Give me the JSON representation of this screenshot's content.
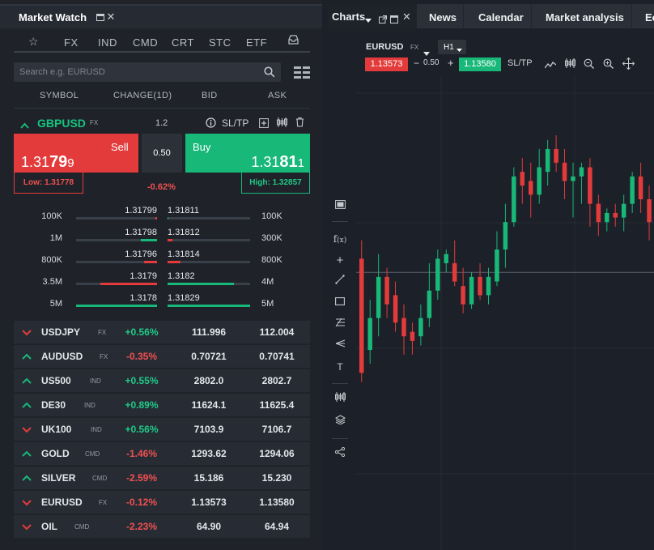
{
  "market_watch": {
    "title": "Market Watch",
    "tabs": [
      {
        "label": "FX"
      },
      {
        "label": "IND"
      },
      {
        "label": "CMD"
      },
      {
        "label": "CRT"
      },
      {
        "label": "STC"
      },
      {
        "label": "ETF"
      }
    ],
    "search_placeholder": "Search e.g. EURUSD",
    "columns": {
      "symbol": "SYMBOL",
      "change": "CHANGE(1D)",
      "bid": "BID",
      "ask": "ASK"
    },
    "selected": {
      "symbol": "GBPUSD",
      "class": "FX",
      "spread_header": "1.2",
      "sltp": "SL/TP",
      "sell_label": "Sell",
      "buy_label": "Buy",
      "sell_price_prefix": "1.31",
      "sell_price_big": "79",
      "sell_price_tail": "9",
      "buy_price_prefix": "1.31",
      "buy_price_big": "81",
      "buy_price_tail": "1",
      "spread": "0.50",
      "low": "Low: 1.31778",
      "high": "High: 1.32857",
      "change": "-0.62%"
    },
    "depth": [
      {
        "bid_vol": "100K",
        "bid": "1.31799",
        "ask": "1.31811",
        "ask_vol": "100K",
        "bid_fill": 0.02,
        "ask_fill": 0.01
      },
      {
        "bid_vol": "1M",
        "bid": "1.31798",
        "ask": "1.31812",
        "ask_vol": "300K",
        "bid_fill": 0.2,
        "ask_fill": 0.06
      },
      {
        "bid_vol": "800K",
        "bid": "1.31796",
        "ask": "1.31814",
        "ask_vol": "800K",
        "bid_fill": 0.16,
        "ask_fill": 0.16
      },
      {
        "bid_vol": "3.5M",
        "bid": "1.3179",
        "ask": "1.3182",
        "ask_vol": "4M",
        "bid_fill": 0.7,
        "ask_fill": 0.8
      },
      {
        "bid_vol": "5M",
        "bid": "1.3178",
        "ask": "1.31829",
        "ask_vol": "5M",
        "bid_fill": 1.0,
        "ask_fill": 1.0
      }
    ],
    "instruments": [
      {
        "dir": "down",
        "symbol": "USDJPY",
        "class": "FX",
        "change": "+0.56%",
        "bid": "111.996",
        "ask": "112.004"
      },
      {
        "dir": "up",
        "symbol": "AUDUSD",
        "class": "FX",
        "change": "-0.35%",
        "bid": "0.70721",
        "ask": "0.70741"
      },
      {
        "dir": "up",
        "symbol": "US500",
        "class": "IND",
        "change": "+0.55%",
        "bid": "2802.0",
        "ask": "2802.7"
      },
      {
        "dir": "up",
        "symbol": "DE30",
        "class": "IND",
        "change": "+0.89%",
        "bid": "11624.1",
        "ask": "11625.4"
      },
      {
        "dir": "down",
        "symbol": "UK100",
        "class": "IND",
        "change": "+0.56%",
        "bid": "7103.9",
        "ask": "7106.7"
      },
      {
        "dir": "up",
        "symbol": "GOLD",
        "class": "CMD",
        "change": "-1.46%",
        "bid": "1293.62",
        "ask": "1294.06"
      },
      {
        "dir": "up",
        "symbol": "SILVER",
        "class": "CMD",
        "change": "-2.59%",
        "bid": "15.186",
        "ask": "15.230"
      },
      {
        "dir": "down",
        "symbol": "EURUSD",
        "class": "FX",
        "change": "-0.12%",
        "bid": "1.13573",
        "ask": "1.13580"
      },
      {
        "dir": "down",
        "symbol": "OIL",
        "class": "CMD",
        "change": "-2.23%",
        "bid": "64.90",
        "ask": "64.94"
      }
    ]
  },
  "chart_panel": {
    "tabs": [
      {
        "label": "Charts"
      },
      {
        "label": "News"
      },
      {
        "label": "Calendar"
      },
      {
        "label": "Market analysis"
      },
      {
        "label": "Ec"
      }
    ],
    "symbol": "EURUSD",
    "class": "FX",
    "timeframe": "H1",
    "sell_price": "1.13573",
    "spread": "0.50",
    "buy_price": "1.13580",
    "sltp": "SL/TP"
  },
  "colors": {
    "up": "#18b879",
    "down": "#e33b3b",
    "bg": "#1f2329"
  },
  "chart_data": {
    "type": "candlestick",
    "candles": [
      {
        "o": 0.62,
        "c": 0.37,
        "h": 0.66,
        "l": 0.35
      },
      {
        "o": 0.42,
        "c": 0.49,
        "h": 0.53,
        "l": 0.39
      },
      {
        "o": 0.49,
        "c": 0.58,
        "h": 0.63,
        "l": 0.45
      },
      {
        "o": 0.58,
        "c": 0.52,
        "h": 0.6,
        "l": 0.49
      },
      {
        "o": 0.54,
        "c": 0.48,
        "h": 0.57,
        "l": 0.46
      },
      {
        "o": 0.49,
        "c": 0.45,
        "h": 0.52,
        "l": 0.41
      },
      {
        "o": 0.46,
        "c": 0.44,
        "h": 0.48,
        "l": 0.41
      },
      {
        "o": 0.45,
        "c": 0.49,
        "h": 0.52,
        "l": 0.43
      },
      {
        "o": 0.49,
        "c": 0.55,
        "h": 0.61,
        "l": 0.47
      },
      {
        "o": 0.55,
        "c": 0.62,
        "h": 0.64,
        "l": 0.53
      },
      {
        "o": 0.61,
        "c": 0.63,
        "h": 0.64,
        "l": 0.59
      },
      {
        "o": 0.61,
        "c": 0.57,
        "h": 0.66,
        "l": 0.56
      },
      {
        "o": 0.56,
        "c": 0.52,
        "h": 0.6,
        "l": 0.5
      },
      {
        "o": 0.52,
        "c": 0.58,
        "h": 0.59,
        "l": 0.51
      },
      {
        "o": 0.58,
        "c": 0.54,
        "h": 0.61,
        "l": 0.53
      },
      {
        "o": 0.54,
        "c": 0.58,
        "h": 0.6,
        "l": 0.52
      },
      {
        "o": 0.57,
        "c": 0.64,
        "h": 0.68,
        "l": 0.56
      },
      {
        "o": 0.64,
        "c": 0.7,
        "h": 0.74,
        "l": 0.6
      },
      {
        "o": 0.7,
        "c": 0.8,
        "h": 0.82,
        "l": 0.69
      },
      {
        "o": 0.81,
        "c": 0.78,
        "h": 0.84,
        "l": 0.74
      },
      {
        "o": 0.79,
        "c": 0.76,
        "h": 0.83,
        "l": 0.71
      },
      {
        "o": 0.76,
        "c": 0.82,
        "h": 0.86,
        "l": 0.74
      },
      {
        "o": 0.81,
        "c": 0.86,
        "h": 0.88,
        "l": 0.78
      },
      {
        "o": 0.86,
        "c": 0.83,
        "h": 0.89,
        "l": 0.81
      },
      {
        "o": 0.83,
        "c": 0.79,
        "h": 0.86,
        "l": 0.75
      },
      {
        "o": 0.79,
        "c": 0.8,
        "h": 0.83,
        "l": 0.71
      },
      {
        "o": 0.8,
        "c": 0.82,
        "h": 0.83,
        "l": 0.74
      },
      {
        "o": 0.82,
        "c": 0.74,
        "h": 0.84,
        "l": 0.69
      },
      {
        "o": 0.74,
        "c": 0.7,
        "h": 0.76,
        "l": 0.67
      },
      {
        "o": 0.7,
        "c": 0.72,
        "h": 0.73,
        "l": 0.68
      },
      {
        "o": 0.72,
        "c": 0.71,
        "h": 0.74,
        "l": 0.69
      },
      {
        "o": 0.71,
        "c": 0.74,
        "h": 0.76,
        "l": 0.68
      },
      {
        "o": 0.74,
        "c": 0.8,
        "h": 0.81,
        "l": 0.72
      },
      {
        "o": 0.8,
        "c": 0.75,
        "h": 0.83,
        "l": 0.72
      },
      {
        "o": 0.75,
        "c": 0.7,
        "h": 0.78,
        "l": 0.66
      }
    ]
  }
}
